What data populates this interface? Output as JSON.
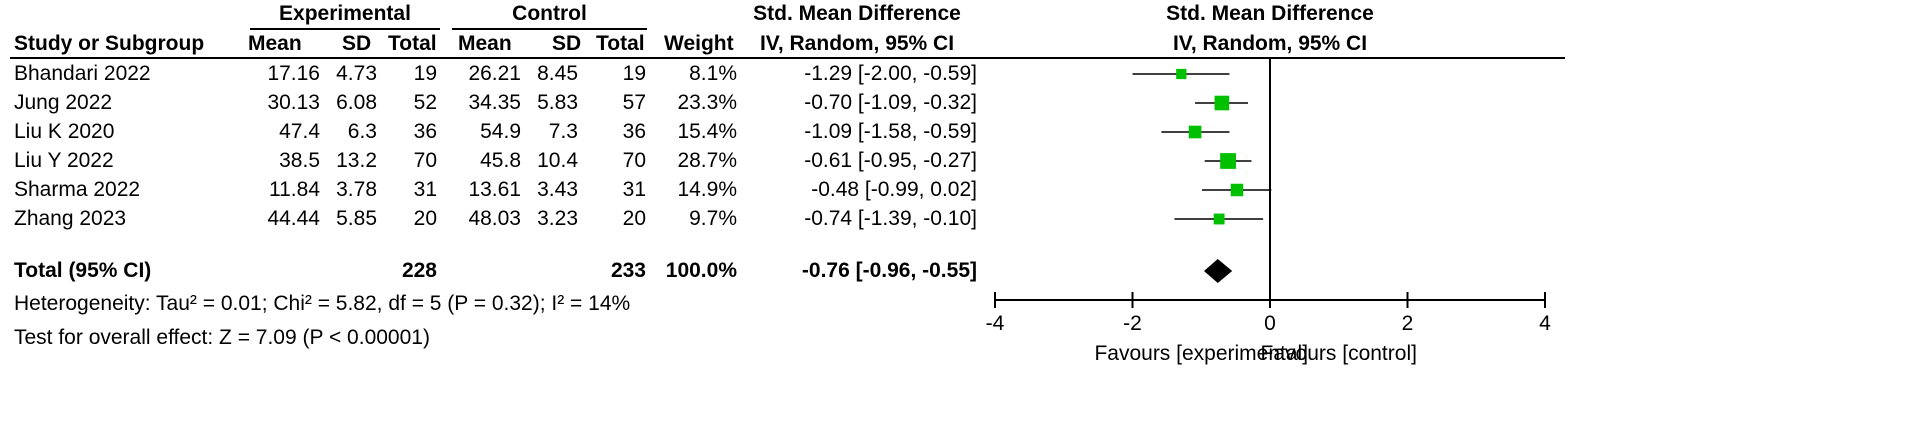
{
  "headers": {
    "experimental": "Experimental",
    "control": "Control",
    "smd_table": "Std. Mean Difference",
    "smd_plot": "Std. Mean Difference",
    "study": "Study or Subgroup",
    "mean": "Mean",
    "sd": "SD",
    "total": "Total",
    "weight": "Weight",
    "method_table": "IV, Random, 95% CI",
    "method_plot": "IV, Random, 95% CI"
  },
  "studies": [
    {
      "name": "Bhandari 2022",
      "exp_mean": "17.16",
      "exp_sd": "4.73",
      "exp_total": "19",
      "ctl_mean": "26.21",
      "ctl_sd": "8.45",
      "ctl_total": "19",
      "weight": "8.1%",
      "ci_text": "-1.29 [-2.00, -0.59]"
    },
    {
      "name": "Jung 2022",
      "exp_mean": "30.13",
      "exp_sd": "6.08",
      "exp_total": "52",
      "ctl_mean": "34.35",
      "ctl_sd": "5.83",
      "ctl_total": "57",
      "weight": "23.3%",
      "ci_text": "-0.70 [-1.09, -0.32]"
    },
    {
      "name": "Liu K 2020",
      "exp_mean": "47.4",
      "exp_sd": "6.3",
      "exp_total": "36",
      "ctl_mean": "54.9",
      "ctl_sd": "7.3",
      "ctl_total": "36",
      "weight": "15.4%",
      "ci_text": "-1.09 [-1.58, -0.59]"
    },
    {
      "name": "Liu Y 2022",
      "exp_mean": "38.5",
      "exp_sd": "13.2",
      "exp_total": "70",
      "ctl_mean": "45.8",
      "ctl_sd": "10.4",
      "ctl_total": "70",
      "weight": "28.7%",
      "ci_text": "-0.61 [-0.95, -0.27]"
    },
    {
      "name": "Sharma 2022",
      "exp_mean": "11.84",
      "exp_sd": "3.78",
      "exp_total": "31",
      "ctl_mean": "13.61",
      "ctl_sd": "3.43",
      "ctl_total": "31",
      "weight": "14.9%",
      "ci_text": "-0.48 [-0.99, 0.02]"
    },
    {
      "name": "Zhang 2023",
      "exp_mean": "44.44",
      "exp_sd": "5.85",
      "exp_total": "20",
      "ctl_mean": "48.03",
      "ctl_sd": "3.23",
      "ctl_total": "20",
      "weight": "9.7%",
      "ci_text": "-0.74 [-1.39, -0.10]"
    }
  ],
  "total": {
    "label": "Total (95% CI)",
    "exp_total": "228",
    "ctl_total": "233",
    "weight": "100.0%",
    "ci_text": "-0.76 [-0.96, -0.55]"
  },
  "footer": {
    "heterogeneity": "Heterogeneity: Tau² = 0.01; Chi² = 5.82, df = 5 (P = 0.32); I² = 14%",
    "overall": "Test for overall effect: Z = 7.09 (P < 0.00001)"
  },
  "axis_labels": {
    "favours_left": "Favours [experimental]",
    "favours_right": "Favours [control]"
  },
  "colors": {
    "square": "#00c000",
    "diamond": "#000000",
    "line": "#000000"
  },
  "chart_data": {
    "type": "forest",
    "xlim": [
      -4,
      4
    ],
    "ticks": [
      -4,
      -2,
      0,
      2,
      4
    ],
    "tick_labels": [
      "-4",
      "-2",
      "0",
      "2",
      "4"
    ],
    "null_value": 0,
    "studies": [
      {
        "name": "Bhandari 2022",
        "estimate": -1.29,
        "lower": -2.0,
        "upper": -0.59,
        "weight": 8.1
      },
      {
        "name": "Jung 2022",
        "estimate": -0.7,
        "lower": -1.09,
        "upper": -0.32,
        "weight": 23.3
      },
      {
        "name": "Liu K 2020",
        "estimate": -1.09,
        "lower": -1.58,
        "upper": -0.59,
        "weight": 15.4
      },
      {
        "name": "Liu Y 2022",
        "estimate": -0.61,
        "lower": -0.95,
        "upper": -0.27,
        "weight": 28.7
      },
      {
        "name": "Sharma 2022",
        "estimate": -0.48,
        "lower": -0.99,
        "upper": 0.02,
        "weight": 14.9
      },
      {
        "name": "Zhang 2023",
        "estimate": -0.74,
        "lower": -1.39,
        "upper": -0.1,
        "weight": 9.7
      }
    ],
    "pooled": {
      "estimate": -0.76,
      "lower": -0.96,
      "upper": -0.55
    }
  }
}
